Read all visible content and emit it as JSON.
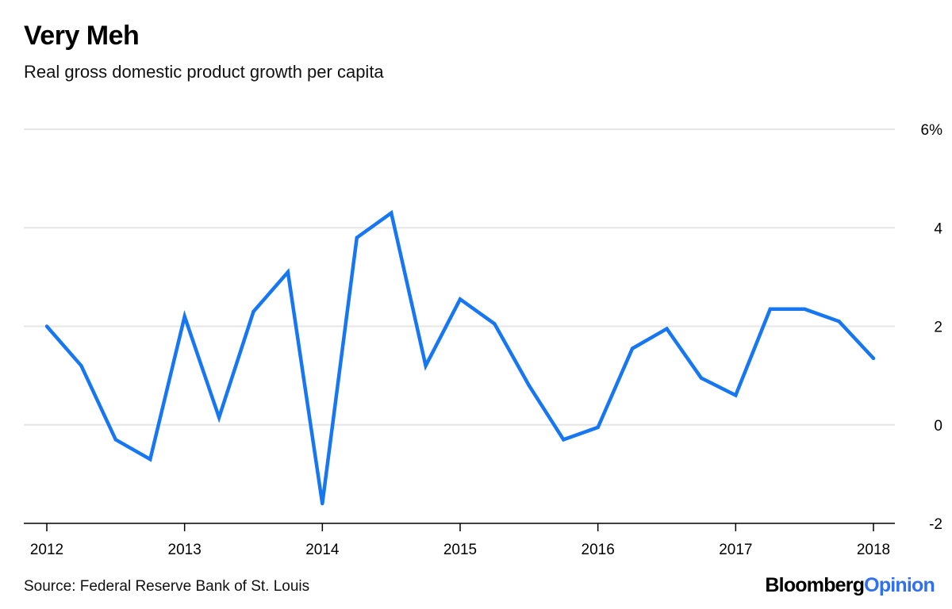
{
  "header": {
    "title": "Very Meh",
    "subtitle": "Real gross domestic product growth per capita"
  },
  "footer": {
    "source": "Source: Federal Reserve Bank of St. Louis",
    "brand_part1": "Bloomberg",
    "brand_part2": "Opinion"
  },
  "colors": {
    "line": "#1777f2",
    "grid": "#e6e6e6",
    "axis": "#000000",
    "brand_accent": "#2f6ff2"
  },
  "chart_data": {
    "type": "line",
    "title": "Very Meh",
    "subtitle": "Real gross domestic product growth per capita",
    "xlabel": "",
    "ylabel": "",
    "x_ticks": [
      "2012",
      "2013",
      "2014",
      "2015",
      "2016",
      "2017",
      "2018"
    ],
    "y_ticks": [
      "6%",
      "4",
      "2",
      "0",
      "-2"
    ],
    "y_tick_values": [
      6,
      4,
      2,
      0,
      -2
    ],
    "xlim": [
      2012,
      2018.17
    ],
    "ylim": [
      -2,
      6
    ],
    "grid": true,
    "y_axis_position": "right",
    "series": [
      {
        "x": [
          "2012 Q1",
          "2012 Q2",
          "2012 Q3",
          "2012 Q4",
          "2013 Q1",
          "2013 Q2",
          "2013 Q3",
          "2013 Q4",
          "2014 Q1",
          "2014 Q2",
          "2014 Q3",
          "2014 Q4",
          "2015 Q1",
          "2015 Q2",
          "2015 Q3",
          "2015 Q4",
          "2016 Q1",
          "2016 Q2",
          "2016 Q3",
          "2016 Q4",
          "2017 Q1",
          "2017 Q2",
          "2017 Q3",
          "2017 Q4",
          "2018 Q1"
        ],
        "values": [
          2.0,
          1.2,
          -0.3,
          -0.7,
          2.2,
          0.15,
          2.3,
          3.1,
          -1.6,
          3.8,
          4.3,
          1.2,
          2.55,
          2.05,
          0.8,
          -0.3,
          -0.05,
          1.55,
          1.95,
          0.95,
          0.6,
          2.35,
          2.35,
          2.1,
          1.35
        ]
      }
    ]
  }
}
